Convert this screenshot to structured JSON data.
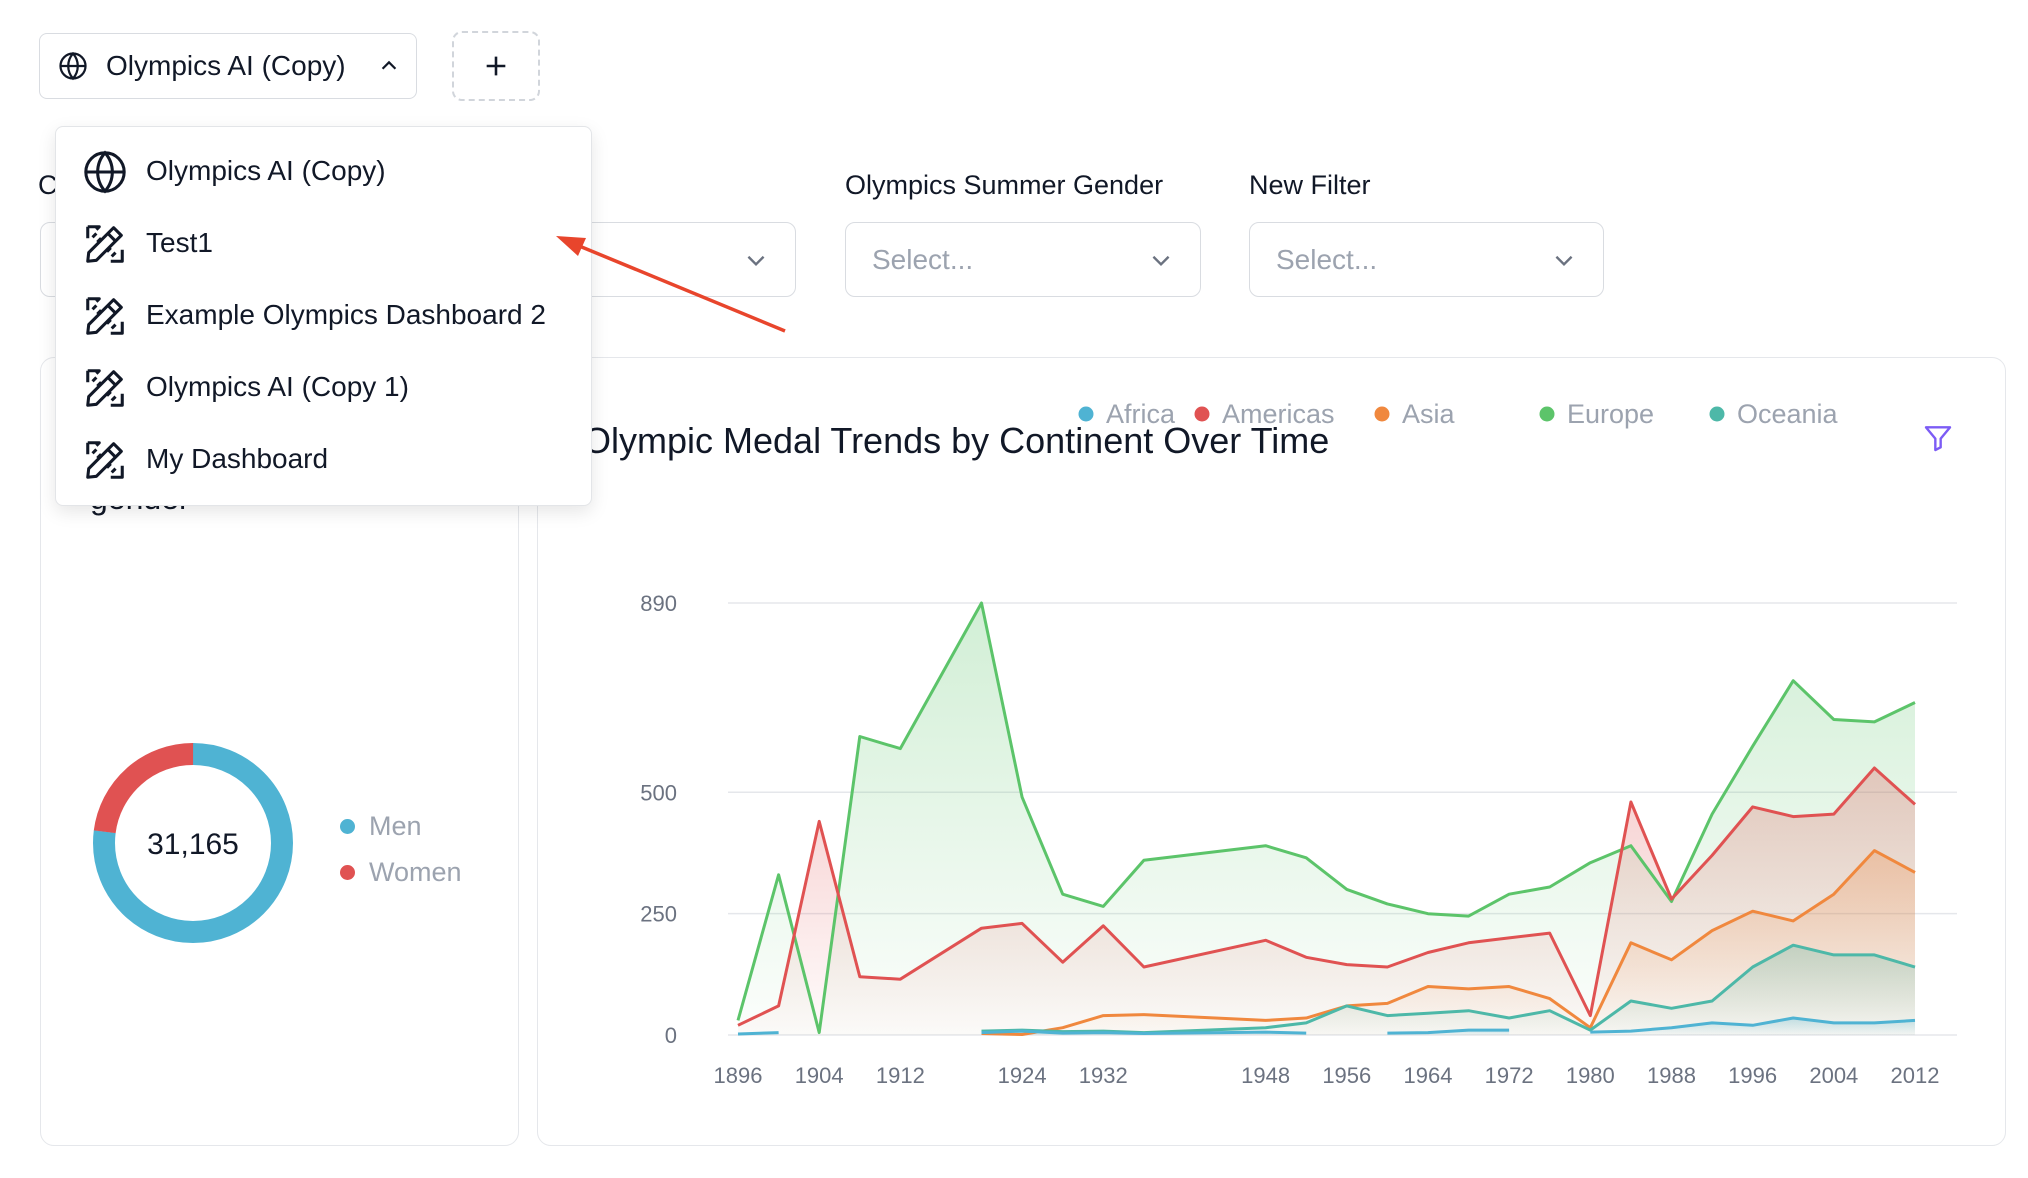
{
  "toolbar": {
    "selected_dashboard": "Olympics AI (Copy)",
    "add_label": "+"
  },
  "dropdown": {
    "items": [
      {
        "label": "Olympics AI (Copy)",
        "icon": "globe-icon"
      },
      {
        "label": "Test1",
        "icon": "design-tools-icon"
      },
      {
        "label": "Example Olympics Dashboard 2",
        "icon": "design-tools-icon"
      },
      {
        "label": "Olympics AI (Copy 1)",
        "icon": "design-tools-icon"
      },
      {
        "label": "My Dashboard",
        "icon": "design-tools-icon"
      }
    ]
  },
  "filters": {
    "partial_label": "C",
    "gender_label": "Olympics Summer Gender",
    "gender_placeholder": "Select...",
    "new_label": "New Filter",
    "new_placeholder": "Select..."
  },
  "left_card": {
    "title_fragment": "gender",
    "total": "31,165",
    "legend": [
      {
        "label": "Men",
        "color": "#4fb3d3"
      },
      {
        "label": "Women",
        "color": "#e05252"
      }
    ]
  },
  "colors": {
    "africa": "#4fb3d3",
    "americas": "#e05252",
    "asia": "#f0883e",
    "europe": "#5cc46a",
    "oceania": "#4db8a8",
    "filter_icon": "#7c5cf5",
    "arrow": "#e8452c"
  },
  "chart_data": {
    "type": "area",
    "title": "Olympic Medal Trends by Continent Over Time",
    "xlabel": "",
    "ylabel": "",
    "x_ticks": [
      "1896",
      "1904",
      "1912",
      "1924",
      "1932",
      "1948",
      "1956",
      "1964",
      "1972",
      "1980",
      "1988",
      "1996",
      "2004",
      "2012"
    ],
    "y_ticks": [
      "0",
      "250",
      "500",
      "890"
    ],
    "ylim": [
      0,
      890
    ],
    "legend_position": "top-right",
    "donut": {
      "type": "pie",
      "values": [
        {
          "name": "Men",
          "value": 24000
        },
        {
          "name": "Women",
          "value": 7165
        }
      ]
    },
    "series": [
      {
        "name": "Africa",
        "points": [
          [
            1896,
            2
          ],
          [
            1900,
            5
          ],
          [
            null,
            null
          ],
          [
            1920,
            5
          ],
          [
            1924,
            8
          ],
          [
            1928,
            4
          ],
          [
            1932,
            5
          ],
          [
            1936,
            3
          ],
          [
            1948,
            6
          ],
          [
            1952,
            4
          ],
          [
            null,
            null
          ],
          [
            1960,
            4
          ],
          [
            1964,
            5
          ],
          [
            1968,
            10
          ],
          [
            1972,
            10
          ],
          [
            null,
            null
          ],
          [
            1980,
            6
          ],
          [
            1984,
            8
          ],
          [
            1988,
            15
          ],
          [
            1992,
            25
          ],
          [
            1996,
            20
          ],
          [
            2000,
            35
          ],
          [
            2004,
            25
          ],
          [
            2008,
            25
          ],
          [
            2012,
            30
          ]
        ]
      },
      {
        "name": "Americas",
        "points": [
          [
            1896,
            20
          ],
          [
            1900,
            60
          ],
          [
            1904,
            440
          ],
          [
            1908,
            120
          ],
          [
            1912,
            115
          ],
          [
            1920,
            220
          ],
          [
            1924,
            230
          ],
          [
            1928,
            150
          ],
          [
            1932,
            225
          ],
          [
            1936,
            140
          ],
          [
            1948,
            195
          ],
          [
            1952,
            160
          ],
          [
            1956,
            145
          ],
          [
            1960,
            140
          ],
          [
            1964,
            170
          ],
          [
            1968,
            190
          ],
          [
            1972,
            200
          ],
          [
            1976,
            210
          ],
          [
            1980,
            40
          ],
          [
            1984,
            480
          ],
          [
            1988,
            280
          ],
          [
            1992,
            370
          ],
          [
            1996,
            470
          ],
          [
            2000,
            450
          ],
          [
            2004,
            455
          ],
          [
            2008,
            550
          ],
          [
            2012,
            475
          ]
        ]
      },
      {
        "name": "Asia",
        "points": [
          [
            1920,
            3
          ],
          [
            1924,
            1
          ],
          [
            1928,
            15
          ],
          [
            1932,
            40
          ],
          [
            1936,
            42
          ],
          [
            1948,
            30
          ],
          [
            1952,
            35
          ],
          [
            1956,
            60
          ],
          [
            1960,
            65
          ],
          [
            1964,
            100
          ],
          [
            1968,
            95
          ],
          [
            1972,
            100
          ],
          [
            1976,
            75
          ],
          [
            1980,
            15
          ],
          [
            1984,
            190
          ],
          [
            1988,
            155
          ],
          [
            1992,
            215
          ],
          [
            1996,
            255
          ],
          [
            2000,
            235
          ],
          [
            2004,
            290
          ],
          [
            2008,
            380
          ],
          [
            2012,
            335
          ]
        ]
      },
      {
        "name": "Europe",
        "points": [
          [
            1896,
            30
          ],
          [
            1900,
            330
          ],
          [
            1904,
            5
          ],
          [
            1908,
            615
          ],
          [
            1912,
            590
          ],
          [
            1920,
            890
          ],
          [
            1924,
            490
          ],
          [
            1928,
            290
          ],
          [
            1932,
            265
          ],
          [
            1936,
            360
          ],
          [
            1948,
            390
          ],
          [
            1952,
            365
          ],
          [
            1956,
            300
          ],
          [
            1960,
            270
          ],
          [
            1964,
            250
          ],
          [
            1968,
            245
          ],
          [
            1972,
            290
          ],
          [
            1976,
            305
          ],
          [
            1980,
            355
          ],
          [
            1984,
            390
          ],
          [
            1988,
            275
          ],
          [
            1992,
            455
          ],
          [
            1996,
            595
          ],
          [
            2000,
            730
          ],
          [
            2004,
            650
          ],
          [
            2008,
            645
          ],
          [
            2012,
            685
          ]
        ]
      },
      {
        "name": "Oceania",
        "points": [
          [
            1920,
            8
          ],
          [
            1924,
            10
          ],
          [
            1928,
            7
          ],
          [
            1932,
            8
          ],
          [
            1936,
            5
          ],
          [
            1948,
            15
          ],
          [
            1952,
            25
          ],
          [
            1956,
            60
          ],
          [
            1960,
            40
          ],
          [
            1964,
            45
          ],
          [
            1968,
            50
          ],
          [
            1972,
            35
          ],
          [
            1976,
            50
          ],
          [
            1980,
            10
          ],
          [
            1984,
            70
          ],
          [
            1988,
            55
          ],
          [
            1992,
            70
          ],
          [
            1996,
            140
          ],
          [
            2000,
            185
          ],
          [
            2004,
            165
          ],
          [
            2008,
            165
          ],
          [
            2012,
            140
          ]
        ]
      }
    ]
  }
}
